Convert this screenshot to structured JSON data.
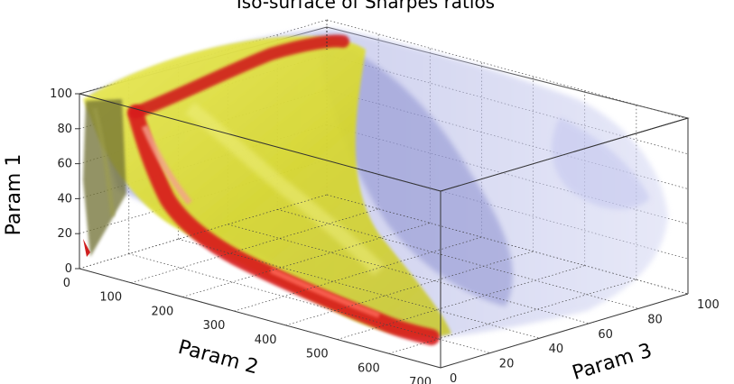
{
  "chart_data": {
    "type": "isosurface-3d",
    "title": "Iso-surface of Sharpes ratios",
    "xlabel": "Param 2",
    "ylabel": "Param 3",
    "zlabel": "Param 1",
    "x_ticks": [
      "0",
      "100",
      "200",
      "300",
      "400",
      "500",
      "600",
      "700"
    ],
    "y_ticks": [
      "0",
      "20",
      "40",
      "60",
      "80",
      "100"
    ],
    "z_ticks": [
      "0",
      "20",
      "40",
      "60",
      "80",
      "100"
    ],
    "xlim": [
      0,
      700
    ],
    "ylim": [
      0,
      100
    ],
    "zlim": [
      0,
      100
    ],
    "box": true,
    "grid": true,
    "colors": {
      "outer_surface": "#9fa4e0",
      "middle_surface": "#e8e83a",
      "inner_surface": "#d81e1e"
    }
  }
}
